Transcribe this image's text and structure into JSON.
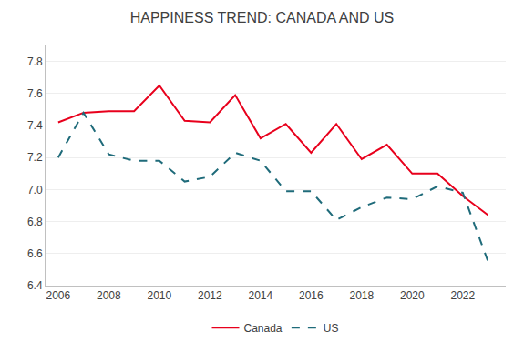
{
  "chart_data": {
    "type": "line",
    "title": "HAPPINESS TREND: CANADA AND US",
    "x": [
      2006,
      2007,
      2008,
      2009,
      2010,
      2011,
      2012,
      2013,
      2014,
      2015,
      2016,
      2017,
      2018,
      2019,
      2020,
      2021,
      2022,
      2023
    ],
    "series": [
      {
        "name": "Canada",
        "color": "#e8001c",
        "line_style": "solid",
        "values": [
          7.42,
          7.48,
          7.49,
          7.49,
          7.65,
          7.43,
          7.42,
          7.59,
          7.32,
          7.41,
          7.23,
          7.41,
          7.19,
          7.28,
          7.1,
          7.1,
          6.96,
          6.84
        ]
      },
      {
        "name": "US",
        "color": "#1f6b7a",
        "line_style": "dashed",
        "values": [
          7.2,
          7.48,
          7.22,
          7.18,
          7.18,
          7.05,
          7.08,
          7.23,
          7.18,
          6.99,
          6.99,
          6.81,
          6.89,
          6.95,
          6.94,
          7.02,
          6.98,
          6.55
        ]
      }
    ],
    "xlim": [
      2005.5,
      2023.7
    ],
    "xticks": [
      2006,
      2008,
      2010,
      2012,
      2014,
      2016,
      2018,
      2020,
      2022
    ],
    "ylim": [
      6.4,
      7.9
    ],
    "yticks": [
      6.4,
      6.6,
      6.8,
      {
        "value": 7.0,
        "label": "7.0"
      },
      7.2,
      7.4,
      7.6,
      7.8
    ],
    "grid": true,
    "legend": "bottom"
  }
}
